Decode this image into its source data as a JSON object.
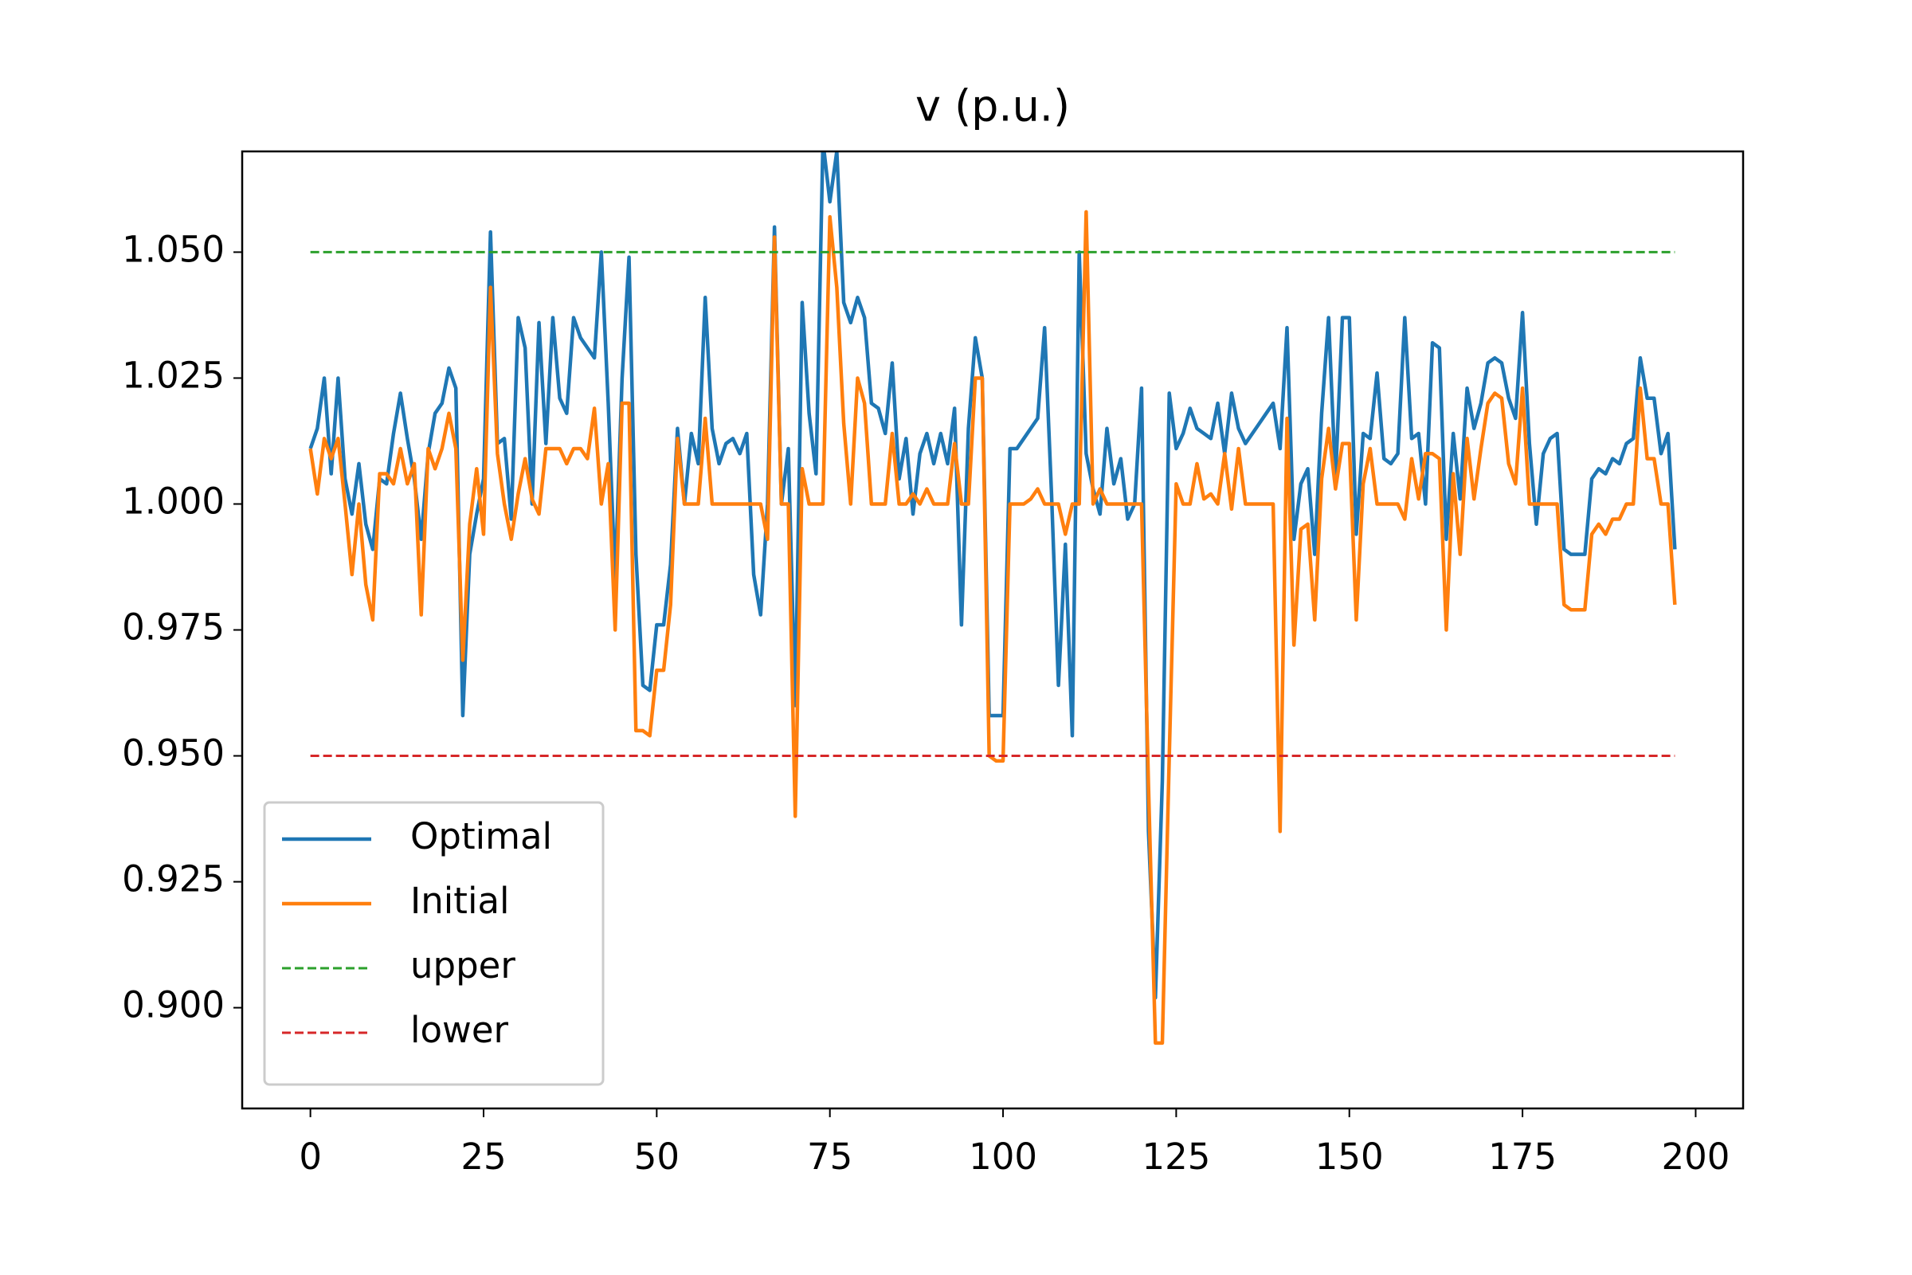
{
  "chart_data": {
    "type": "line",
    "title": "v (p.u.)",
    "x": [
      0,
      1,
      2,
      3,
      4,
      5,
      6,
      7,
      8,
      9,
      10,
      11,
      12,
      13,
      14,
      15,
      16,
      17,
      18,
      19,
      20,
      21,
      22,
      23,
      24,
      25,
      26,
      27,
      28,
      29,
      30,
      31,
      32,
      33,
      34,
      35,
      36,
      37,
      38,
      39,
      40,
      41,
      42,
      43,
      44,
      45,
      46,
      47,
      48,
      49,
      50,
      51,
      52,
      53,
      54,
      55,
      56,
      57,
      58,
      59,
      60,
      61,
      62,
      63,
      64,
      65,
      66,
      67,
      68,
      69,
      70,
      71,
      72,
      73,
      74,
      75,
      76,
      77,
      78,
      79,
      80,
      81,
      82,
      83,
      84,
      85,
      86,
      87,
      88,
      89,
      90,
      91,
      92,
      93,
      94,
      95,
      96,
      97,
      98,
      99,
      100,
      101,
      102,
      103,
      104,
      105,
      106,
      107,
      108,
      109,
      110,
      111,
      112,
      113,
      114,
      115,
      116,
      117,
      118,
      119,
      120,
      121,
      122,
      123,
      124,
      125,
      126,
      127,
      128,
      129,
      130,
      131,
      132,
      133,
      134,
      135,
      136,
      137,
      138,
      139,
      140,
      141,
      142,
      143,
      144,
      145,
      146,
      147,
      148,
      149,
      150,
      151,
      152,
      153,
      154,
      155,
      156,
      157,
      158,
      159,
      160,
      161,
      162,
      163,
      164,
      165,
      166,
      167,
      168,
      169,
      170,
      171,
      172,
      173,
      174,
      175,
      176,
      177,
      178,
      179,
      180,
      181,
      182,
      183,
      184,
      185,
      186,
      187,
      188,
      189,
      190,
      191,
      192,
      193,
      194,
      195,
      196,
      197
    ],
    "series": [
      {
        "name": "Optimal",
        "color": "#1f77b4",
        "linestyle": "solid",
        "values": [
          1.011,
          1.015,
          1.025,
          1.006,
          1.025,
          1.005,
          0.998,
          1.008,
          0.996,
          0.991,
          1.005,
          1.004,
          1.014,
          1.022,
          1.013,
          1.005,
          0.993,
          1.01,
          1.018,
          1.02,
          1.027,
          1.023,
          0.958,
          0.99,
          0.998,
          1.005,
          1.054,
          1.012,
          1.013,
          0.997,
          1.037,
          1.031,
          1.0,
          1.036,
          1.012,
          1.037,
          1.021,
          1.018,
          1.037,
          1.033,
          1.031,
          1.029,
          1.05,
          1.02,
          0.985,
          1.025,
          1.049,
          0.99,
          0.964,
          0.963,
          0.976,
          0.976,
          0.988,
          1.015,
          1.0,
          1.014,
          1.008,
          1.041,
          1.015,
          1.008,
          1.012,
          1.013,
          1.01,
          1.014,
          0.986,
          0.978,
          1.0,
          1.055,
          1.0,
          1.011,
          0.96,
          1.04,
          1.018,
          1.006,
          1.072,
          1.06,
          1.07,
          1.04,
          1.036,
          1.041,
          1.037,
          1.02,
          1.019,
          1.014,
          1.028,
          1.005,
          1.013,
          0.998,
          1.01,
          1.014,
          1.008,
          1.014,
          1.008,
          1.019,
          0.976,
          1.015,
          1.033,
          1.025,
          0.958,
          0.958,
          0.958,
          1.011,
          1.011,
          1.013,
          1.015,
          1.017,
          1.035,
          1.002,
          0.964,
          0.992,
          0.954,
          1.05,
          1.01,
          1.003,
          0.998,
          1.015,
          1.004,
          1.009,
          0.997,
          1.0,
          1.023,
          0.935,
          0.902,
          0.945,
          1.022,
          1.011,
          1.014,
          1.019,
          1.015,
          1.014,
          1.013,
          1.02,
          1.01,
          1.022,
          1.015,
          1.012,
          1.014,
          1.016,
          1.018,
          1.02,
          1.011,
          1.035,
          0.993,
          1.004,
          1.007,
          0.99,
          1.018,
          1.037,
          1.005,
          1.037,
          1.037,
          0.994,
          1.014,
          1.013,
          1.026,
          1.009,
          1.008,
          1.01,
          1.037,
          1.013,
          1.014,
          1.0,
          1.032,
          1.031,
          0.993,
          1.014,
          1.001,
          1.023,
          1.015,
          1.02,
          1.028,
          1.029,
          1.028,
          1.021,
          1.017,
          1.038,
          1.012,
          0.996,
          1.01,
          1.013,
          1.014,
          0.991,
          0.99,
          0.99,
          0.99,
          1.005,
          1.007,
          1.006,
          1.009,
          1.008,
          1.012,
          1.013,
          1.029,
          1.021,
          1.021,
          1.01,
          1.014,
          0.991
        ]
      },
      {
        "name": "Initial",
        "color": "#ff7f0e",
        "linestyle": "solid",
        "values": [
          1.011,
          1.002,
          1.013,
          1.009,
          1.013,
          1.0,
          0.986,
          1.0,
          0.984,
          0.977,
          1.006,
          1.006,
          1.004,
          1.011,
          1.004,
          1.008,
          0.978,
          1.011,
          1.007,
          1.011,
          1.018,
          1.011,
          0.969,
          0.996,
          1.007,
          0.994,
          1.043,
          1.01,
          1.0,
          0.993,
          1.002,
          1.009,
          1.001,
          0.998,
          1.011,
          1.011,
          1.011,
          1.008,
          1.011,
          1.011,
          1.009,
          1.019,
          1.0,
          1.008,
          0.975,
          1.02,
          1.02,
          0.955,
          0.955,
          0.954,
          0.967,
          0.967,
          0.98,
          1.013,
          1.0,
          1.0,
          1.0,
          1.017,
          1.0,
          1.0,
          1.0,
          1.0,
          1.0,
          1.0,
          1.0,
          1.0,
          0.993,
          1.053,
          1.0,
          1.0,
          0.938,
          1.007,
          1.0,
          1.0,
          1.0,
          1.057,
          1.043,
          1.016,
          1.0,
          1.025,
          1.02,
          1.0,
          1.0,
          1.0,
          1.014,
          1.0,
          1.0,
          1.002,
          1.0,
          1.003,
          1.0,
          1.0,
          1.0,
          1.012,
          1.0,
          1.0,
          1.025,
          1.025,
          0.95,
          0.949,
          0.949,
          1.0,
          1.0,
          1.0,
          1.001,
          1.003,
          1.0,
          1.0,
          1.0,
          0.994,
          1.0,
          1.0,
          1.058,
          1.0,
          1.003,
          1.0,
          1.0,
          1.0,
          1.0,
          1.0,
          1.0,
          0.944,
          0.893,
          0.893,
          0.95,
          1.004,
          1.0,
          1.0,
          1.008,
          1.001,
          1.002,
          1.0,
          1.01,
          0.999,
          1.011,
          1.0,
          1.0,
          1.0,
          1.0,
          1.0,
          0.935,
          1.017,
          0.972,
          0.995,
          0.996,
          0.977,
          1.005,
          1.015,
          1.003,
          1.012,
          1.012,
          0.977,
          1.004,
          1.011,
          1.0,
          1.0,
          1.0,
          1.0,
          0.997,
          1.009,
          1.001,
          1.01,
          1.01,
          1.009,
          0.975,
          1.006,
          0.99,
          1.013,
          1.001,
          1.011,
          1.02,
          1.022,
          1.021,
          1.008,
          1.004,
          1.023,
          1.0,
          1.0,
          1.0,
          1.0,
          1.0,
          0.98,
          0.979,
          0.979,
          0.979,
          0.994,
          0.996,
          0.994,
          0.997,
          0.997,
          1.0,
          1.0,
          1.023,
          1.009,
          1.009,
          1.0,
          1.0,
          0.98
        ]
      },
      {
        "name": "upper",
        "color": "#2ca02c",
        "linestyle": "dashed",
        "x": [
          0,
          197
        ],
        "values": [
          1.05,
          1.05
        ]
      },
      {
        "name": "lower",
        "color": "#d62728",
        "linestyle": "dashed",
        "x": [
          0,
          197
        ],
        "values": [
          0.95,
          0.95
        ]
      }
    ],
    "xlim": [
      -9.85,
      206.85
    ],
    "ylim": [
      0.88,
      1.07
    ],
    "xticks": [
      0,
      25,
      50,
      75,
      100,
      125,
      150,
      175,
      200
    ],
    "yticks": [
      {
        "value": 0.9,
        "label": "0.900"
      },
      {
        "value": 0.925,
        "label": "0.925"
      },
      {
        "value": 0.95,
        "label": "0.950"
      },
      {
        "value": 0.975,
        "label": "0.975"
      },
      {
        "value": 1.0,
        "label": "1.000"
      },
      {
        "value": 1.025,
        "label": "1.025"
      },
      {
        "value": 1.05,
        "label": "1.050"
      }
    ],
    "legend": "lower left",
    "grid": false
  }
}
